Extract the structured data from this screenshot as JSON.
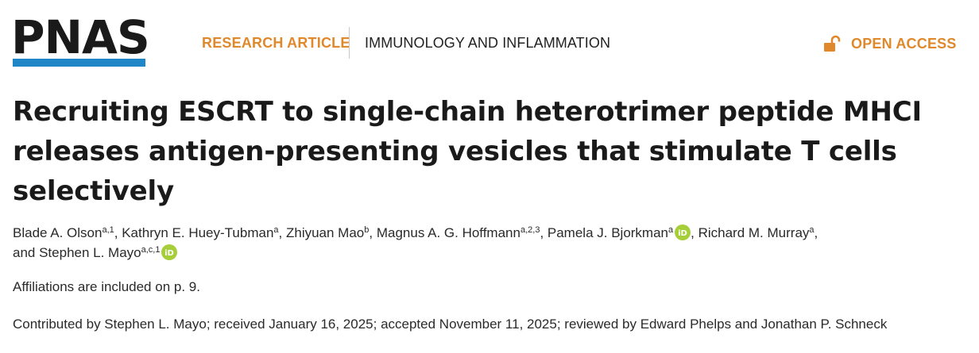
{
  "header": {
    "logo_text": "PNAS",
    "article_type": "RESEARCH ARTICLE",
    "subject": "IMMUNOLOGY AND INFLAMMATION",
    "access_label": "OPEN ACCESS",
    "accent_color": "#e0892c",
    "logo_bar_color": "#1f86c7",
    "lock_icon": "unlock-icon"
  },
  "article": {
    "title": "Recruiting ESCRT to single-chain heterotrimer peptide MHCI releases antigen-presenting vesicles that stimulate T cells selectively",
    "authors": [
      {
        "name": "Blade A. Olson",
        "sup": "a,1",
        "orcid": false
      },
      {
        "name": "Kathryn E. Huey-Tubman",
        "sup": "a",
        "orcid": false
      },
      {
        "name": "Zhiyuan Mao",
        "sup": "b",
        "orcid": false
      },
      {
        "name": "Magnus A. G. Hoffmann",
        "sup": "a,2,3",
        "orcid": false
      },
      {
        "name": "Pamela J. Bjorkman",
        "sup": "a",
        "orcid": true
      },
      {
        "name": "Richard M. Murray",
        "sup": "a",
        "orcid": false
      },
      {
        "name": "Stephen L. Mayo",
        "sup": "a,c,1",
        "orcid": true
      }
    ],
    "author_separator": ", ",
    "last_author_prefix": "and ",
    "orcid_icon": "orcid-icon",
    "orcid_color": "#a6ce39",
    "affiliations_note": "Affiliations are included on p. 9.",
    "contributed_line": "Contributed by Stephen L. Mayo; received January 16, 2025; accepted November 11, 2025; reviewed by Edward Phelps and Jonathan P. Schneck"
  }
}
